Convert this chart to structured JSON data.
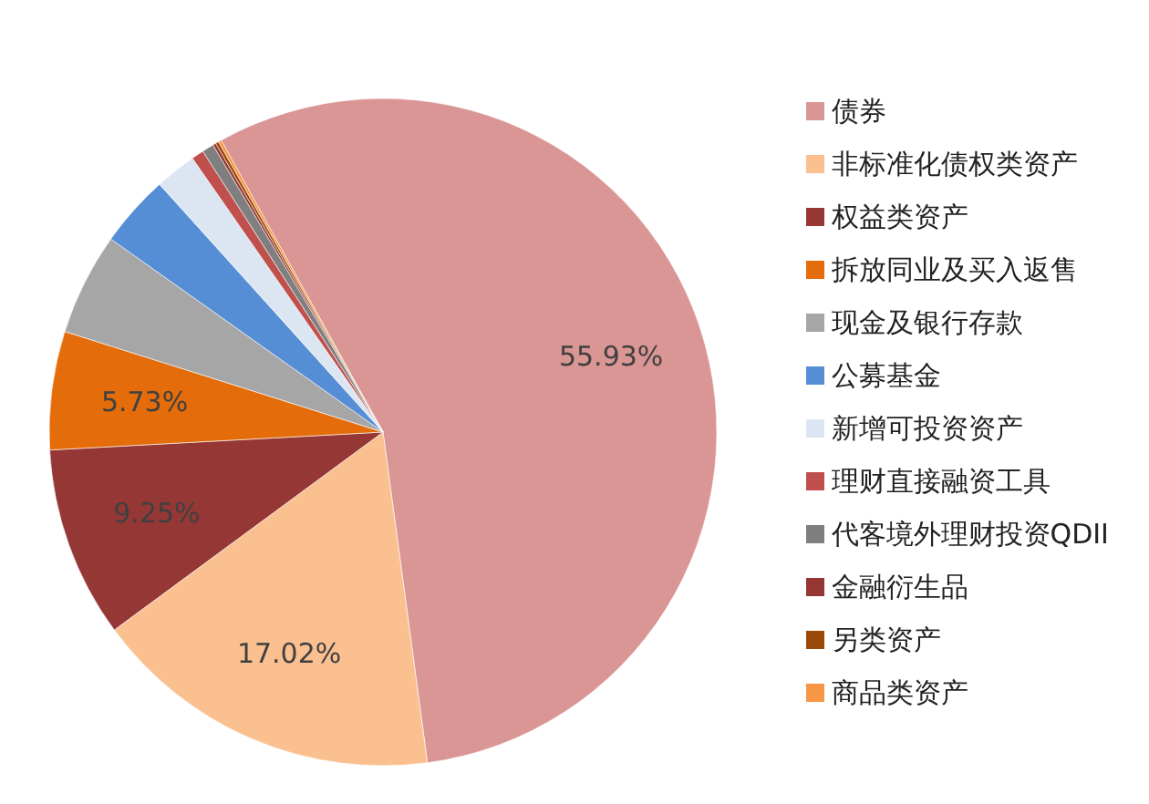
{
  "chart_data": {
    "type": "pie",
    "categories": [
      "债券",
      "非标准化债权类资产",
      "权益类资产",
      "拆放同业及买入返售",
      "现金及银行存款",
      "公募基金",
      "新增可投资资产",
      "理财直接融资工具",
      "代客境外理财投资QDII",
      "金融衍生品",
      "另类资产",
      "商品类资产"
    ],
    "values": [
      55.93,
      17.02,
      9.25,
      5.73,
      4.95,
      3.5,
      2.0,
      0.6,
      0.57,
      0.15,
      0.15,
      0.15
    ],
    "value_labels": [
      "55.93%",
      "17.02%",
      "9.25%",
      "5.73%",
      null,
      null,
      null,
      null,
      null,
      null,
      null,
      null
    ],
    "colors": [
      "#d99694",
      "#fac090",
      "#953735",
      "#e46c0a",
      "#a6a6a6",
      "#558ed5",
      "#dce6f2",
      "#c0504d",
      "#7f7f7f",
      "#943634",
      "#984807",
      "#f79646"
    ],
    "legend": "right"
  }
}
